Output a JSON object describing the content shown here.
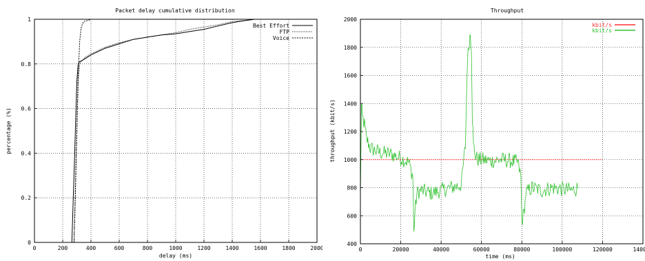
{
  "chart_data": [
    {
      "type": "line",
      "title": "Packet delay cumulative distribution",
      "xlabel": "delay (ms)",
      "ylabel": "percentage (%)",
      "xlim": [
        0,
        2000
      ],
      "ylim": [
        0,
        1
      ],
      "x_ticks": [
        "0",
        "200",
        "400",
        "600",
        "800",
        "1000",
        "1200",
        "1400",
        "1600",
        "1800",
        "2000"
      ],
      "y_ticks": [
        "0",
        "0.2",
        "0.4",
        "0.6",
        "0.8",
        "1"
      ],
      "grid": true,
      "legend": "top-right",
      "series": [
        {
          "name": "Best Effort",
          "style": "solid",
          "x": [
            265,
            285,
            300,
            310,
            320,
            350,
            400,
            500,
            600,
            700,
            800,
            900,
            1000,
            1100,
            1200,
            1300,
            1400,
            1500,
            1560,
            1600
          ],
          "y": [
            0,
            0.4,
            0.72,
            0.8,
            0.81,
            0.82,
            0.84,
            0.87,
            0.89,
            0.91,
            0.92,
            0.93,
            0.935,
            0.945,
            0.955,
            0.97,
            0.985,
            0.995,
            1.0,
            1.0
          ]
        },
        {
          "name": "FTP",
          "style": "dotted",
          "x": [
            280,
            295,
            310,
            320,
            330,
            360,
            400,
            500,
            600,
            700,
            800,
            900,
            1000,
            1100,
            1200,
            1300,
            1400,
            1500,
            1550,
            1600
          ],
          "y": [
            0,
            0.4,
            0.72,
            0.8,
            0.81,
            0.83,
            0.845,
            0.875,
            0.895,
            0.91,
            0.92,
            0.93,
            0.94,
            0.955,
            0.965,
            0.975,
            0.99,
            0.995,
            1.0,
            1.0
          ]
        },
        {
          "name": "Voice",
          "style": "dashed",
          "x": [
            280,
            290,
            300,
            310,
            320,
            330,
            340,
            350,
            380,
            400,
            500,
            800,
            1200,
            1600
          ],
          "y": [
            0,
            0.2,
            0.5,
            0.75,
            0.9,
            0.96,
            0.98,
            0.99,
            0.995,
            1.0,
            1.0,
            1.0,
            1.0,
            1.0
          ]
        }
      ]
    },
    {
      "type": "line",
      "title": "Throughput",
      "xlabel": "time (ms)",
      "ylabel": "throughput (kbit/s)",
      "xlim": [
        0,
        140000
      ],
      "ylim": [
        400,
        2000
      ],
      "x_ticks": [
        "0",
        "20000",
        "40000",
        "60000",
        "80000",
        "100000",
        "120000",
        "140000"
      ],
      "y_ticks": [
        "400",
        "600",
        "800",
        "1000",
        "1200",
        "1400",
        "1600",
        "1800",
        "2000"
      ],
      "grid": true,
      "legend": "top-right",
      "series": [
        {
          "name": "kbit/s",
          "color": "#ff3030",
          "x": [
            0,
            20000,
            40000,
            60000,
            80000,
            100000,
            120000
          ],
          "y": [
            1000,
            1000,
            1000,
            1000,
            1000,
            1000,
            1000
          ]
        },
        {
          "name": "kbit/s",
          "color": "#30c030",
          "x": [
            0,
            500,
            1000,
            2000,
            3000,
            5000,
            8000,
            10000,
            15000,
            20000,
            24000,
            26000,
            26500,
            27000,
            28000,
            30000,
            35000,
            40000,
            45000,
            50000,
            52000,
            53000,
            54000,
            54500,
            55000,
            55500,
            56000,
            57000,
            58000,
            60000,
            65000,
            70000,
            75000,
            78000,
            79500,
            80000,
            81000,
            82000,
            85000,
            90000,
            95000,
            100000,
            105000,
            108000
          ],
          "y": [
            700,
            1380,
            1300,
            1250,
            1150,
            1080,
            1060,
            1050,
            1040,
            1010,
            980,
            880,
            470,
            620,
            760,
            780,
            760,
            780,
            800,
            820,
            1100,
            1700,
            1850,
            1900,
            1800,
            1300,
            1100,
            1030,
            1000,
            1000,
            990,
            1000,
            990,
            980,
            880,
            560,
            620,
            760,
            800,
            780,
            800,
            790,
            780,
            800
          ]
        }
      ]
    }
  ]
}
